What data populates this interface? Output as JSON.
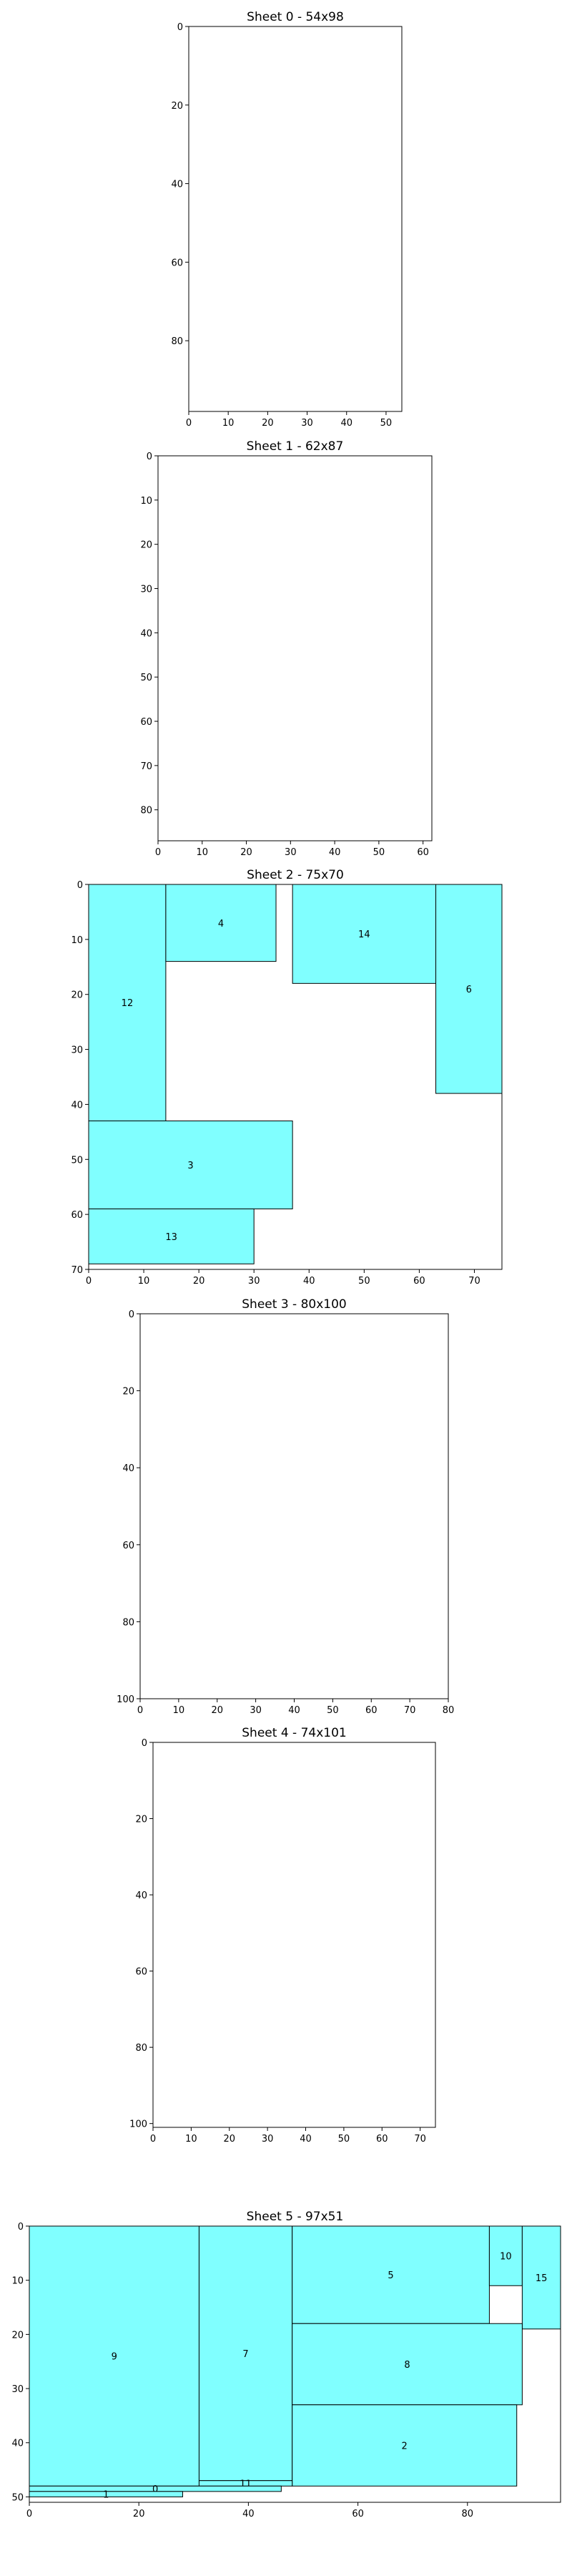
{
  "figure": {
    "background": "#ffffff",
    "piece_fill": "#80ffff",
    "piece_edge": "#000000"
  },
  "chart_data": [
    {
      "type": "packing-sheet",
      "title": "Sheet 0 - 54x98",
      "sheet_width": 54,
      "sheet_height": 98,
      "xlim": [
        0,
        54
      ],
      "ylim": [
        98,
        0
      ],
      "xticks": [
        0,
        10,
        20,
        30,
        40,
        50
      ],
      "yticks": [
        0,
        20,
        40,
        60,
        80
      ],
      "pieces": []
    },
    {
      "type": "packing-sheet",
      "title": "Sheet 1 - 62x87",
      "sheet_width": 62,
      "sheet_height": 87,
      "xlim": [
        0,
        62
      ],
      "ylim": [
        87,
        0
      ],
      "xticks": [
        0,
        10,
        20,
        30,
        40,
        50,
        60
      ],
      "yticks": [
        0,
        10,
        20,
        30,
        40,
        50,
        60,
        70,
        80
      ],
      "pieces": []
    },
    {
      "type": "packing-sheet",
      "title": "Sheet 2 - 75x70",
      "sheet_width": 75,
      "sheet_height": 70,
      "xlim": [
        0,
        75
      ],
      "ylim": [
        70,
        0
      ],
      "xticks": [
        0,
        10,
        20,
        30,
        40,
        50,
        60,
        70
      ],
      "yticks": [
        0,
        10,
        20,
        30,
        40,
        50,
        60,
        70
      ],
      "pieces": [
        {
          "id": "12",
          "x": 0,
          "y": 0,
          "w": 14,
          "h": 43
        },
        {
          "id": "4",
          "x": 14,
          "y": 0,
          "w": 20,
          "h": 14
        },
        {
          "id": "14",
          "x": 37,
          "y": 0,
          "w": 26,
          "h": 18
        },
        {
          "id": "6",
          "x": 63,
          "y": 0,
          "w": 12,
          "h": 38
        },
        {
          "id": "3",
          "x": 0,
          "y": 43,
          "w": 37,
          "h": 16
        },
        {
          "id": "13",
          "x": 0,
          "y": 59,
          "w": 30,
          "h": 10
        }
      ]
    },
    {
      "type": "packing-sheet",
      "title": "Sheet 3 - 80x100",
      "sheet_width": 80,
      "sheet_height": 100,
      "xlim": [
        0,
        80
      ],
      "ylim": [
        100,
        0
      ],
      "xticks": [
        0,
        10,
        20,
        30,
        40,
        50,
        60,
        70,
        80
      ],
      "yticks": [
        0,
        20,
        40,
        60,
        80,
        100
      ],
      "pieces": []
    },
    {
      "type": "packing-sheet",
      "title": "Sheet 4 - 74x101",
      "sheet_width": 74,
      "sheet_height": 101,
      "xlim": [
        0,
        74
      ],
      "ylim": [
        101,
        0
      ],
      "xticks": [
        0,
        10,
        20,
        30,
        40,
        50,
        60,
        70
      ],
      "yticks": [
        0,
        20,
        40,
        60,
        80,
        100
      ],
      "pieces": []
    },
    {
      "type": "packing-sheet",
      "title": "Sheet 5 - 97x51",
      "sheet_width": 97,
      "sheet_height": 51,
      "xlim": [
        0,
        97
      ],
      "ylim": [
        51,
        0
      ],
      "xticks": [
        0,
        20,
        40,
        60,
        80
      ],
      "yticks": [
        0,
        10,
        20,
        30,
        40,
        50
      ],
      "pieces": [
        {
          "id": "9",
          "x": 0,
          "y": 0,
          "w": 31,
          "h": 48
        },
        {
          "id": "7",
          "x": 31,
          "y": 0,
          "w": 17,
          "h": 47
        },
        {
          "id": "5",
          "x": 48,
          "y": 0,
          "w": 36,
          "h": 18
        },
        {
          "id": "10",
          "x": 84,
          "y": 0,
          "w": 6,
          "h": 11
        },
        {
          "id": "15",
          "x": 90,
          "y": 0,
          "w": 7,
          "h": 19
        },
        {
          "id": "8",
          "x": 48,
          "y": 18,
          "w": 42,
          "h": 15
        },
        {
          "id": "2",
          "x": 48,
          "y": 33,
          "w": 41,
          "h": 15
        },
        {
          "id": "11",
          "x": 31,
          "y": 47,
          "w": 17,
          "h": 1
        },
        {
          "id": "0",
          "x": 0,
          "y": 48,
          "w": 46,
          "h": 1
        },
        {
          "id": "1",
          "x": 0,
          "y": 49,
          "w": 28,
          "h": 1
        }
      ]
    }
  ]
}
